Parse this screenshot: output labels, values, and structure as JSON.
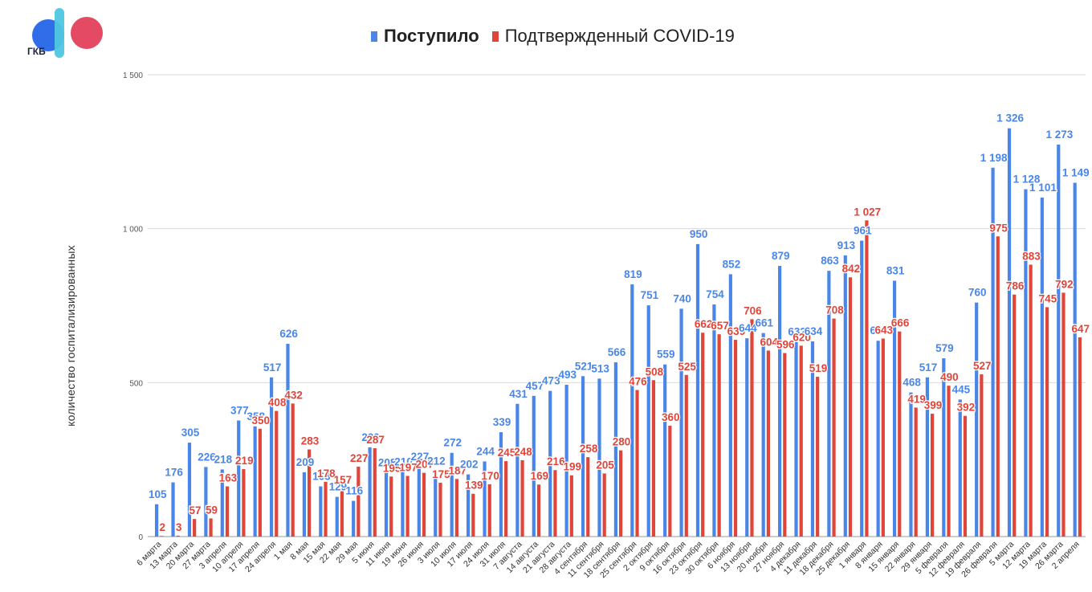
{
  "logo": {
    "text": "ГКБ",
    "colors": [
      "#2f6ee8",
      "#e33b57",
      "#4fc6e0"
    ]
  },
  "chart_data": {
    "type": "bar",
    "title": "",
    "xlabel": "",
    "ylabel": "количество госпитализированных",
    "ylim": [
      0,
      1500
    ],
    "yticks": [
      {
        "value": 0,
        "label": "0"
      },
      {
        "value": 500,
        "label": "500"
      },
      {
        "value": 1000,
        "label": "1 000"
      },
      {
        "value": 1500,
        "label": "1 500"
      }
    ],
    "grid": true,
    "legend_position": "top",
    "categories": [
      "6 марта",
      "13 марта",
      "20 марта",
      "27 марта",
      "3 апреля",
      "10 апреля",
      "17 апреля",
      "24 апреля",
      "1 мая",
      "8 мая",
      "15 мая",
      "22 мая",
      "29 мая",
      "5 июня",
      "11 июня",
      "19 июня",
      "26 июня",
      "3 июля",
      "10 июля",
      "17 июля",
      "24 июля",
      "31 июля",
      "7 августа",
      "14 августа",
      "21 августа",
      "28 августа",
      "4 сентября",
      "11 сентября",
      "18 сентября",
      "25 сентября",
      "2 октября",
      "9 октября",
      "16 октября",
      "23 октября",
      "30 октября",
      "6 ноября",
      "13 ноября",
      "20 ноября",
      "27 ноября",
      "4 декабря",
      "11 декабря",
      "18 декабря",
      "25 декабря",
      "1 января",
      "8 января",
      "15 января",
      "22 января",
      "29 января",
      "5 февраля",
      "12 февраля",
      "19 февраля",
      "26 февраля",
      "5 марта",
      "12 марта",
      "19 марта",
      "26 марта",
      "2 апреля"
    ],
    "series": [
      {
        "name": "Поступило",
        "color": "#4a86e8",
        "values": [
          105,
          176,
          305,
          226,
          218,
          377,
          358,
          517,
          626,
          209,
          163,
          129,
          116,
          290,
          208,
          210,
          227,
          212,
          272,
          202,
          244,
          339,
          431,
          457,
          473,
          493,
          521,
          513,
          566,
          819,
          751,
          559,
          740,
          950,
          754,
          852,
          644,
          661,
          879,
          632,
          634,
          863,
          913,
          961,
          636,
          831,
          468,
          517,
          579,
          445,
          760,
          1198,
          1326,
          1128,
          1101,
          1273,
          1149
        ],
        "labels": [
          "105",
          "176",
          "305",
          "226",
          "218",
          "377",
          "358",
          "517",
          "626",
          "209",
          "163",
          "129",
          "116",
          "290",
          "208",
          "210",
          "227",
          "212",
          "272",
          "202",
          "244",
          "339",
          "431",
          "457",
          "473",
          "493",
          "521",
          "513",
          "566",
          "819",
          "751",
          "559",
          "740",
          "950",
          "754",
          "852",
          "644",
          "661",
          "879",
          "632",
          "634",
          "863",
          "913",
          "961",
          "636",
          "831",
          "468",
          "517",
          "579",
          "445",
          "760",
          "1 198",
          "1 326",
          "1 128",
          "1 101",
          "1 273",
          "1 149"
        ]
      },
      {
        "name": "Подтвержденный COVID-19",
        "color": "#e0453a",
        "values": [
          2,
          3,
          57,
          59,
          163,
          219,
          350,
          408,
          432,
          283,
          178,
          157,
          227,
          287,
          195,
          197,
          207,
          175,
          187,
          139,
          170,
          245,
          248,
          169,
          216,
          199,
          258,
          205,
          280,
          476,
          508,
          360,
          525,
          662,
          657,
          639,
          706,
          604,
          596,
          620,
          519,
          708,
          842,
          1027,
          643,
          666,
          419,
          399,
          490,
          392,
          527,
          975,
          786,
          883,
          745,
          792,
          647
        ],
        "labels": [
          "2",
          "3",
          "57",
          "59",
          "163",
          "219",
          "350",
          "408",
          "432",
          "283",
          "178",
          "157",
          "227",
          "287",
          "195",
          "197",
          "207",
          "175",
          "187",
          "139",
          "170",
          "245",
          "248",
          "169",
          "216",
          "199",
          "258",
          "205",
          "280",
          "476",
          "508",
          "360",
          "525",
          "662",
          "657",
          "639",
          "706",
          "604",
          "596",
          "620",
          "519",
          "708",
          "842",
          "1 027",
          "643",
          "666",
          "419",
          "399",
          "490",
          "392",
          "527",
          "975",
          "786",
          "883",
          "745",
          "792",
          "647"
        ]
      }
    ]
  }
}
